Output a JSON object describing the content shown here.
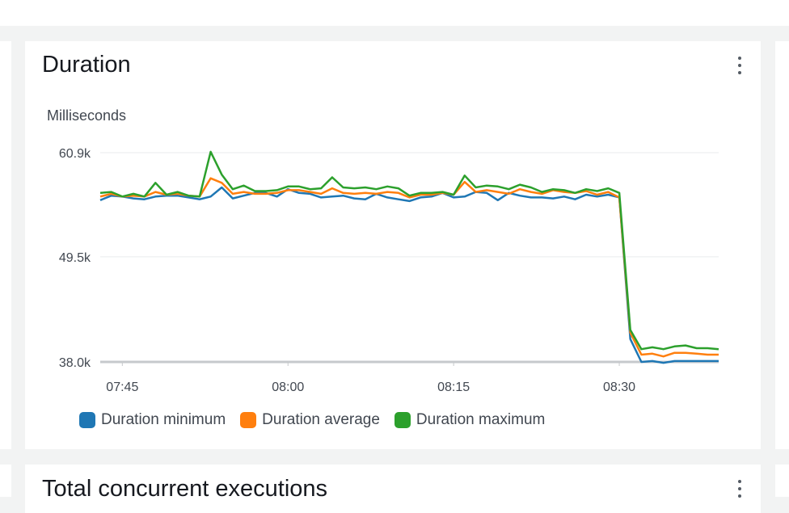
{
  "widgets": [
    {
      "title": "Duration",
      "menu_icon": "vertical-ellipsis-icon"
    },
    {
      "title": "Total concurrent executions",
      "menu_icon": "vertical-ellipsis-icon"
    }
  ],
  "colors": {
    "series_min": "#1f77b4",
    "series_avg": "#ff7f0e",
    "series_max": "#2ca02c",
    "grid": "#e9ebed",
    "axis": "#c6c9cc",
    "text": "#414750"
  },
  "chart_data": {
    "type": "line",
    "title": "Duration",
    "ylabel": "Milliseconds",
    "xlabel": "",
    "ylim": [
      38.0,
      60.9
    ],
    "yticks": [
      "60.9k",
      "49.5k",
      "38.0k"
    ],
    "ytick_values": [
      60.9,
      49.5,
      38.0
    ],
    "xticks": [
      "07:45",
      "08:00",
      "08:15",
      "08:30"
    ],
    "xtick_values": [
      465,
      480,
      495,
      510
    ],
    "xlim": [
      463,
      519
    ],
    "grid": true,
    "legend_position": "bottom-left",
    "x": [
      463,
      464,
      465,
      466,
      467,
      468,
      469,
      470,
      471,
      472,
      473,
      474,
      475,
      476,
      477,
      478,
      479,
      480,
      481,
      482,
      483,
      484,
      485,
      486,
      487,
      488,
      489,
      490,
      491,
      492,
      493,
      494,
      495,
      496,
      497,
      498,
      499,
      500,
      501,
      502,
      503,
      504,
      505,
      506,
      507,
      508,
      509,
      510,
      511,
      512,
      513,
      514,
      515,
      516,
      517,
      518,
      519
    ],
    "series": [
      {
        "name": "Duration minimum",
        "values": [
          55.7,
          56.2,
          56.1,
          55.9,
          55.8,
          56.1,
          56.2,
          56.2,
          56.0,
          55.8,
          56.1,
          57.1,
          55.9,
          56.2,
          56.5,
          56.5,
          56.1,
          56.9,
          56.5,
          56.4,
          56.0,
          56.1,
          56.2,
          55.9,
          55.8,
          56.4,
          56.0,
          55.8,
          55.6,
          56.0,
          56.1,
          56.5,
          56.0,
          56.1,
          56.6,
          56.5,
          55.7,
          56.5,
          56.2,
          56.0,
          56.0,
          55.9,
          56.1,
          55.8,
          56.3,
          56.1,
          56.3,
          56.0,
          40.5,
          38.0,
          38.1,
          37.9,
          38.1,
          38.1,
          38.1,
          38.1,
          38.1
        ]
      },
      {
        "name": "Duration average",
        "values": [
          56.1,
          56.4,
          56.1,
          56.2,
          56.1,
          56.6,
          56.3,
          56.4,
          56.2,
          56.1,
          58.1,
          57.6,
          56.4,
          56.6,
          56.4,
          56.4,
          56.5,
          56.8,
          56.8,
          56.6,
          56.4,
          57.0,
          56.5,
          56.4,
          56.5,
          56.4,
          56.6,
          56.5,
          56.0,
          56.3,
          56.3,
          56.5,
          56.3,
          57.7,
          56.6,
          56.8,
          56.6,
          56.4,
          56.9,
          56.6,
          56.4,
          56.8,
          56.6,
          56.5,
          56.7,
          56.3,
          56.6,
          56.0,
          41.2,
          38.8,
          38.9,
          38.6,
          39.0,
          39.0,
          38.9,
          38.8,
          38.8
        ]
      },
      {
        "name": "Duration maximum",
        "values": [
          56.5,
          56.6,
          56.1,
          56.4,
          56.1,
          57.6,
          56.3,
          56.6,
          56.2,
          56.1,
          61.0,
          58.5,
          56.9,
          57.3,
          56.7,
          56.7,
          56.8,
          57.2,
          57.2,
          56.9,
          57.0,
          58.2,
          57.1,
          57.0,
          57.1,
          56.9,
          57.2,
          57.0,
          56.2,
          56.5,
          56.5,
          56.6,
          56.3,
          58.4,
          57.1,
          57.3,
          57.2,
          56.9,
          57.4,
          57.1,
          56.6,
          56.9,
          56.8,
          56.5,
          56.9,
          56.7,
          57.0,
          56.5,
          41.5,
          39.4,
          39.6,
          39.4,
          39.7,
          39.8,
          39.5,
          39.5,
          39.4
        ]
      }
    ]
  }
}
